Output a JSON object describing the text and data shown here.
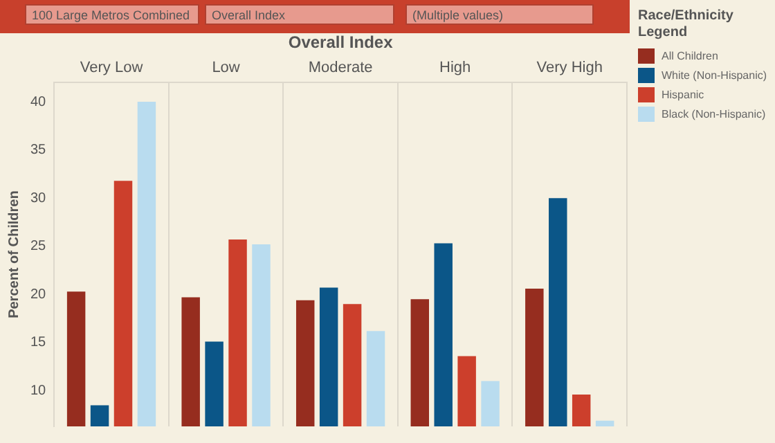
{
  "chart_data": {
    "type": "bar",
    "xlabel": "Overall Index",
    "ylabel": "Percent of Children",
    "legend_title": "Race/Ethnicity Legend",
    "annotations": [
      "100 Large Metros Combined",
      "Overall Index",
      "(Multiple values)"
    ],
    "categories": [
      "Very Low",
      "Low",
      "Moderate",
      "High",
      "Very High"
    ],
    "series": [
      {
        "name": "All Children",
        "color": "#962d1f",
        "values": [
          20.3,
          19.7,
          19.4,
          19.5,
          20.6
        ]
      },
      {
        "name": "White (Non-Hispanic)",
        "color": "#0b5688",
        "values": [
          8.5,
          15.1,
          20.7,
          25.3,
          30.0
        ]
      },
      {
        "name": "Hispanic",
        "color": "#cc3f2c",
        "values": [
          31.8,
          25.7,
          19.0,
          13.6,
          9.6
        ]
      },
      {
        "name": "Black (Non-Hispanic)",
        "color": "#b9dcef",
        "values": [
          40.0,
          25.2,
          16.2,
          11.0,
          6.9
        ]
      }
    ],
    "ylim": [
      6.3,
      42
    ],
    "yticks": [
      10,
      15,
      20,
      25,
      30,
      35,
      40
    ],
    "grid": "x",
    "legend": "right"
  }
}
